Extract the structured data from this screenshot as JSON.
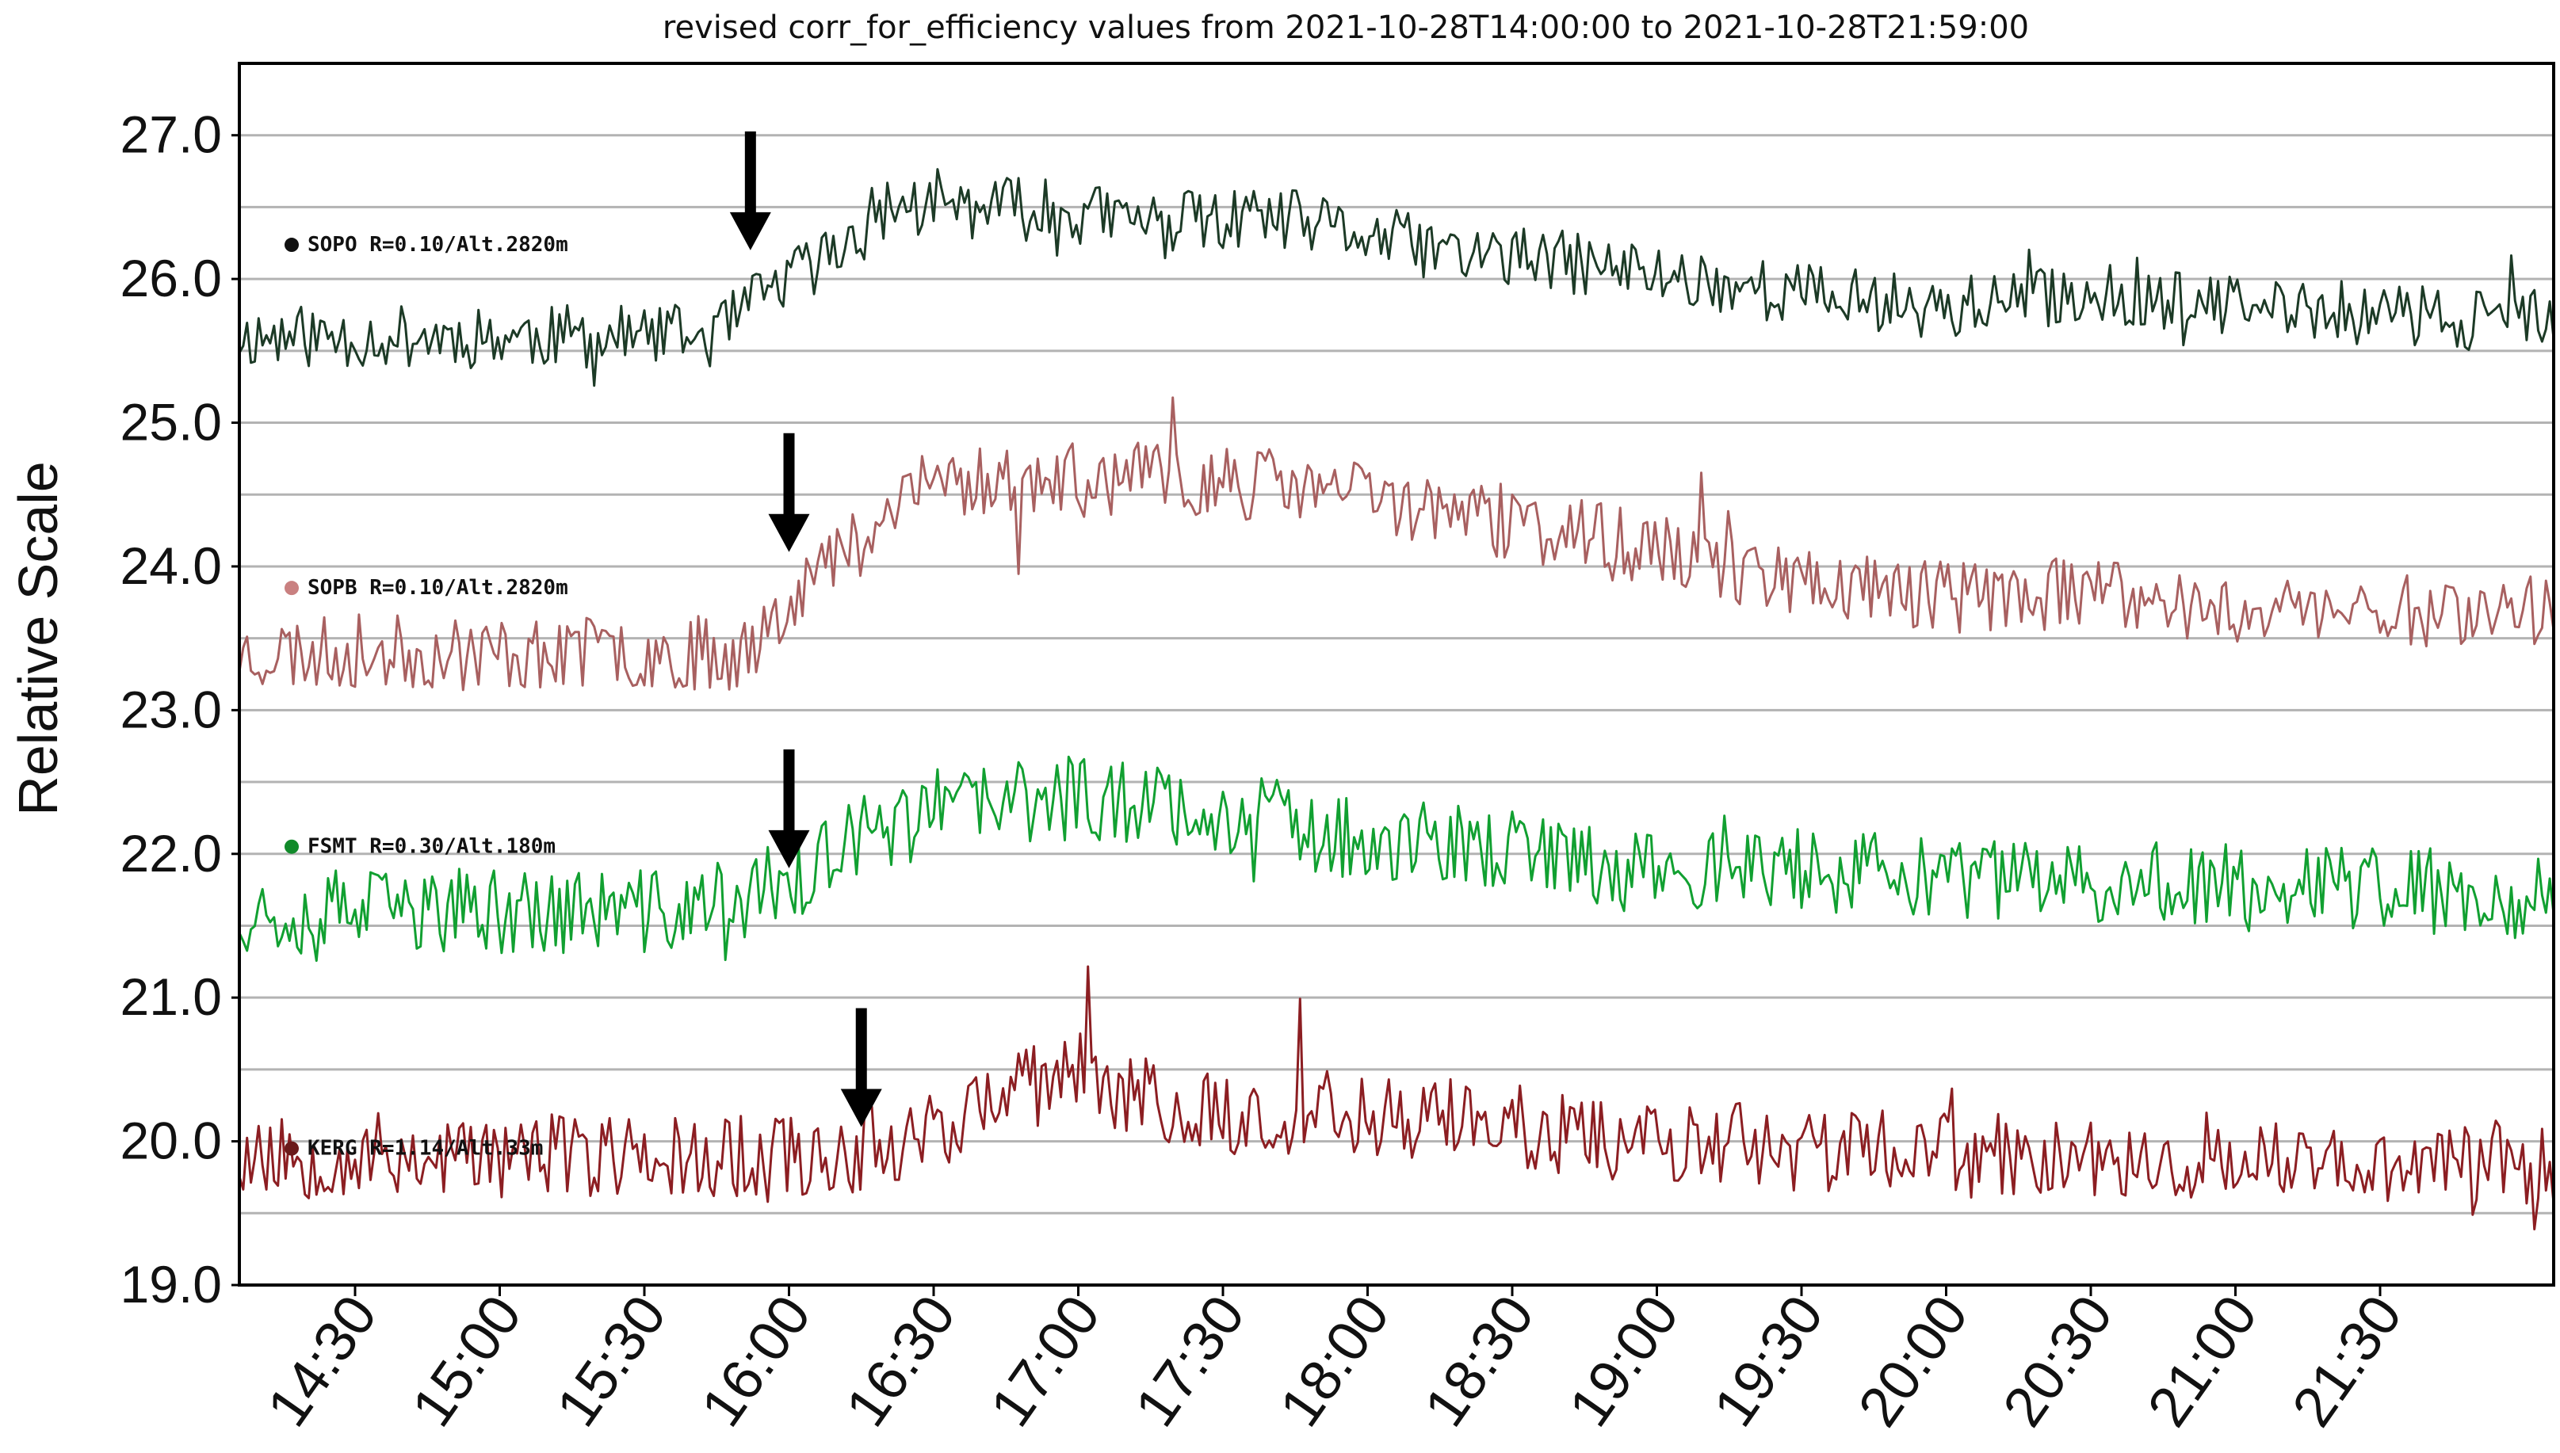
{
  "chart_data": {
    "type": "line",
    "title": "revised corr_for_efficiency values from 2021-10-28T14:00:00 to 2021-10-28T21:59:00",
    "ylabel": "Relative Scale",
    "xlabel": "",
    "ylim": [
      19.0,
      27.5
    ],
    "yticks": [
      "19.0",
      "20.0",
      "21.0",
      "22.0",
      "23.0",
      "24.0",
      "25.0",
      "26.0",
      "27.0"
    ],
    "xrange": [
      "14:06",
      "22:06"
    ],
    "xticks": [
      "14:30",
      "15:00",
      "15:30",
      "16:00",
      "16:30",
      "17:00",
      "17:30",
      "18:00",
      "18:30",
      "19:00",
      "19:30",
      "20:00",
      "20:30",
      "21:00",
      "21:30"
    ],
    "grid": true,
    "series": [
      {
        "name": "SOPO R=0.10/Alt.2820m",
        "color": "#1c3a26",
        "marker_color": "#111111",
        "noise": 0.22,
        "seed": 11,
        "arrow_time": "15:52",
        "arrow_value": 26.2,
        "profile": [
          [
            "14:06",
            25.6
          ],
          [
            "15:45",
            25.6
          ],
          [
            "15:55",
            25.9
          ],
          [
            "16:10",
            26.2
          ],
          [
            "16:20",
            26.5
          ],
          [
            "16:45",
            26.5
          ],
          [
            "17:15",
            26.4
          ],
          [
            "17:45",
            26.4
          ],
          [
            "18:15",
            26.2
          ],
          [
            "18:45",
            26.1
          ],
          [
            "19:30",
            25.9
          ],
          [
            "20:00",
            25.8
          ],
          [
            "20:30",
            25.9
          ],
          [
            "21:00",
            25.8
          ],
          [
            "22:06",
            25.7
          ]
        ]
      },
      {
        "name": "SOPB R=0.10/Alt.2820m",
        "color": "#a86060",
        "marker_color": "#c98080",
        "noise": 0.26,
        "seed": 23,
        "arrow_time": "16:00",
        "arrow_value": 24.1,
        "profile": [
          [
            "14:06",
            23.4
          ],
          [
            "15:50",
            23.4
          ],
          [
            "16:00",
            23.8
          ],
          [
            "16:15",
            24.2
          ],
          [
            "16:30",
            24.6
          ],
          [
            "17:00",
            24.6
          ],
          [
            "17:30",
            24.6
          ],
          [
            "18:00",
            24.5
          ],
          [
            "18:30",
            24.3
          ],
          [
            "19:00",
            24.1
          ],
          [
            "19:30",
            23.9
          ],
          [
            "20:00",
            23.8
          ],
          [
            "20:30",
            23.8
          ],
          [
            "21:00",
            23.7
          ],
          [
            "22:06",
            23.7
          ]
        ]
      },
      {
        "name": "FSMT R=0.30/Alt.180m",
        "color": "#11a031",
        "marker_color": "#118a2a",
        "noise": 0.3,
        "seed": 37,
        "arrow_time": "16:00",
        "arrow_value": 21.9,
        "profile": [
          [
            "14:06",
            21.6
          ],
          [
            "15:40",
            21.6
          ],
          [
            "16:00",
            21.8
          ],
          [
            "16:15",
            22.1
          ],
          [
            "16:30",
            22.3
          ],
          [
            "17:00",
            22.4
          ],
          [
            "17:30",
            22.3
          ],
          [
            "18:00",
            22.1
          ],
          [
            "18:30",
            22.0
          ],
          [
            "19:00",
            21.9
          ],
          [
            "19:30",
            21.9
          ],
          [
            "20:00",
            21.8
          ],
          [
            "20:30",
            21.8
          ],
          [
            "21:00",
            21.8
          ],
          [
            "22:06",
            21.7
          ]
        ]
      },
      {
        "name": "KERG R=1.14/Alt.33m",
        "color": "#8c1e22",
        "marker_color": "#6a1a1a",
        "noise": 0.3,
        "seed": 53,
        "arrow_time": "16:15",
        "arrow_value": 20.1,
        "profile": [
          [
            "14:06",
            19.9
          ],
          [
            "16:10",
            19.9
          ],
          [
            "16:30",
            20.1
          ],
          [
            "17:00",
            20.5
          ],
          [
            "17:20",
            20.2
          ],
          [
            "18:00",
            20.2
          ],
          [
            "19:00",
            20.0
          ],
          [
            "20:00",
            19.9
          ],
          [
            "21:00",
            19.85
          ],
          [
            "22:06",
            19.85
          ]
        ]
      }
    ]
  }
}
